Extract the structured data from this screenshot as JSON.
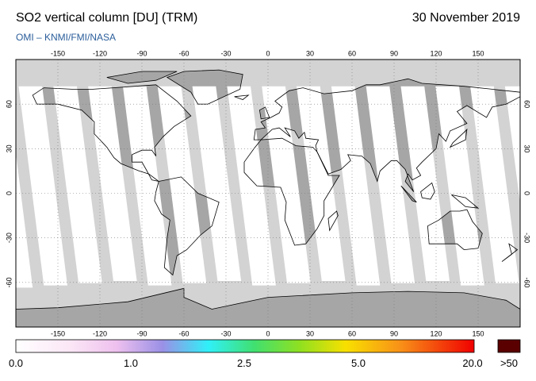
{
  "header": {
    "title": "SO2 vertical column [DU] (TRM)",
    "subtitle": "OMI  –  KNMI/FMI/NASA",
    "date": "30 November 2019"
  },
  "map": {
    "longitude_ticks": [
      -150,
      -120,
      -90,
      -60,
      -30,
      0,
      30,
      60,
      90,
      120,
      150
    ],
    "latitude_ticks": [
      60,
      30,
      0,
      -30,
      -60
    ],
    "colorbar": {
      "labels": [
        "0.0",
        "1.0",
        "2.5",
        "5.0",
        "20.0"
      ],
      "overflow_label": ">50"
    }
  }
}
